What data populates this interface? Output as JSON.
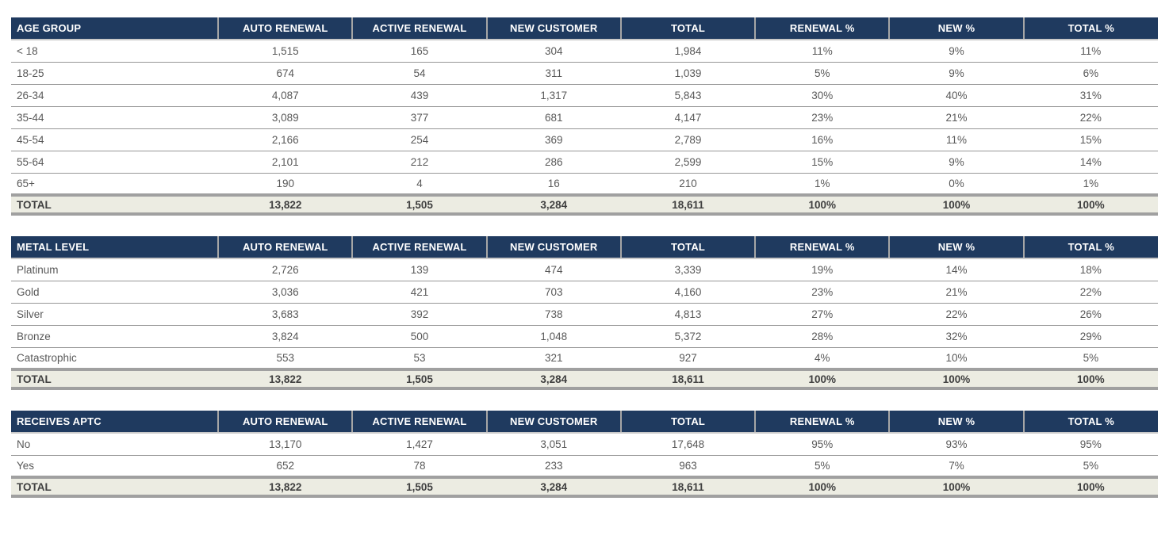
{
  "theme": {
    "header_bg": "#1f3a5f",
    "header_text": "#ffffff",
    "total_row_bg": "#ecece2",
    "thick_border": "#a0a0a0",
    "row_border": "#979797",
    "data_text": "#595959",
    "total_text": "#404040",
    "page_bg": "#ffffff"
  },
  "value_columns": [
    "AUTO RENEWAL",
    "ACTIVE RENEWAL",
    "NEW CUSTOMER",
    "TOTAL",
    "RENEWAL %",
    "NEW %",
    "TOTAL %"
  ],
  "tables": [
    {
      "key_header": "AGE GROUP",
      "rows": [
        {
          "label": "< 18",
          "values": [
            "1,515",
            "165",
            "304",
            "1,984",
            "11%",
            "9%",
            "11%"
          ]
        },
        {
          "label": "18-25",
          "values": [
            "674",
            "54",
            "311",
            "1,039",
            "5%",
            "9%",
            "6%"
          ]
        },
        {
          "label": "26-34",
          "values": [
            "4,087",
            "439",
            "1,317",
            "5,843",
            "30%",
            "40%",
            "31%"
          ]
        },
        {
          "label": "35-44",
          "values": [
            "3,089",
            "377",
            "681",
            "4,147",
            "23%",
            "21%",
            "22%"
          ]
        },
        {
          "label": "45-54",
          "values": [
            "2,166",
            "254",
            "369",
            "2,789",
            "16%",
            "11%",
            "15%"
          ]
        },
        {
          "label": "55-64",
          "values": [
            "2,101",
            "212",
            "286",
            "2,599",
            "15%",
            "9%",
            "14%"
          ]
        },
        {
          "label": "65+",
          "values": [
            "190",
            "4",
            "16",
            "210",
            "1%",
            "0%",
            "1%"
          ]
        }
      ],
      "total": {
        "label": "TOTAL",
        "values": [
          "13,822",
          "1,505",
          "3,284",
          "18,611",
          "100%",
          "100%",
          "100%"
        ]
      }
    },
    {
      "key_header": "METAL LEVEL",
      "rows": [
        {
          "label": "Platinum",
          "values": [
            "2,726",
            "139",
            "474",
            "3,339",
            "19%",
            "14%",
            "18%"
          ]
        },
        {
          "label": "Gold",
          "values": [
            "3,036",
            "421",
            "703",
            "4,160",
            "23%",
            "21%",
            "22%"
          ]
        },
        {
          "label": "Silver",
          "values": [
            "3,683",
            "392",
            "738",
            "4,813",
            "27%",
            "22%",
            "26%"
          ]
        },
        {
          "label": "Bronze",
          "values": [
            "3,824",
            "500",
            "1,048",
            "5,372",
            "28%",
            "32%",
            "29%"
          ]
        },
        {
          "label": "Catastrophic",
          "values": [
            "553",
            "53",
            "321",
            "927",
            "4%",
            "10%",
            "5%"
          ]
        }
      ],
      "total": {
        "label": "TOTAL",
        "values": [
          "13,822",
          "1,505",
          "3,284",
          "18,611",
          "100%",
          "100%",
          "100%"
        ]
      }
    },
    {
      "key_header": "RECEIVES APTC",
      "rows": [
        {
          "label": "No",
          "values": [
            "13,170",
            "1,427",
            "3,051",
            "17,648",
            "95%",
            "93%",
            "95%"
          ]
        },
        {
          "label": "Yes",
          "values": [
            "652",
            "78",
            "233",
            "963",
            "5%",
            "7%",
            "5%"
          ]
        }
      ],
      "total": {
        "label": "TOTAL",
        "values": [
          "13,822",
          "1,505",
          "3,284",
          "18,611",
          "100%",
          "100%",
          "100%"
        ]
      }
    }
  ]
}
